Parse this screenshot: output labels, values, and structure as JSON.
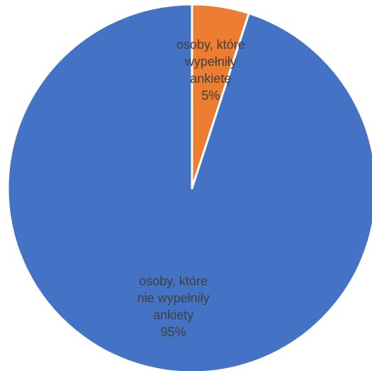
{
  "chart_data": {
    "type": "pie",
    "title": "",
    "start_angle_deg": 0,
    "direction": "clockwise",
    "slices": [
      {
        "label_lines": [
          "osoby, które",
          "wypełniły",
          "ankietę"
        ],
        "value": 5,
        "value_label": "5%",
        "color": "#ED7D31"
      },
      {
        "label_lines": [
          "osoby, które",
          "nie wypełniły",
          "ankiety"
        ],
        "value": 95,
        "value_label": "95%",
        "color": "#4472C4"
      }
    ],
    "slice_border_color": "#ffffff",
    "legend": "none",
    "label_position": "inside"
  }
}
